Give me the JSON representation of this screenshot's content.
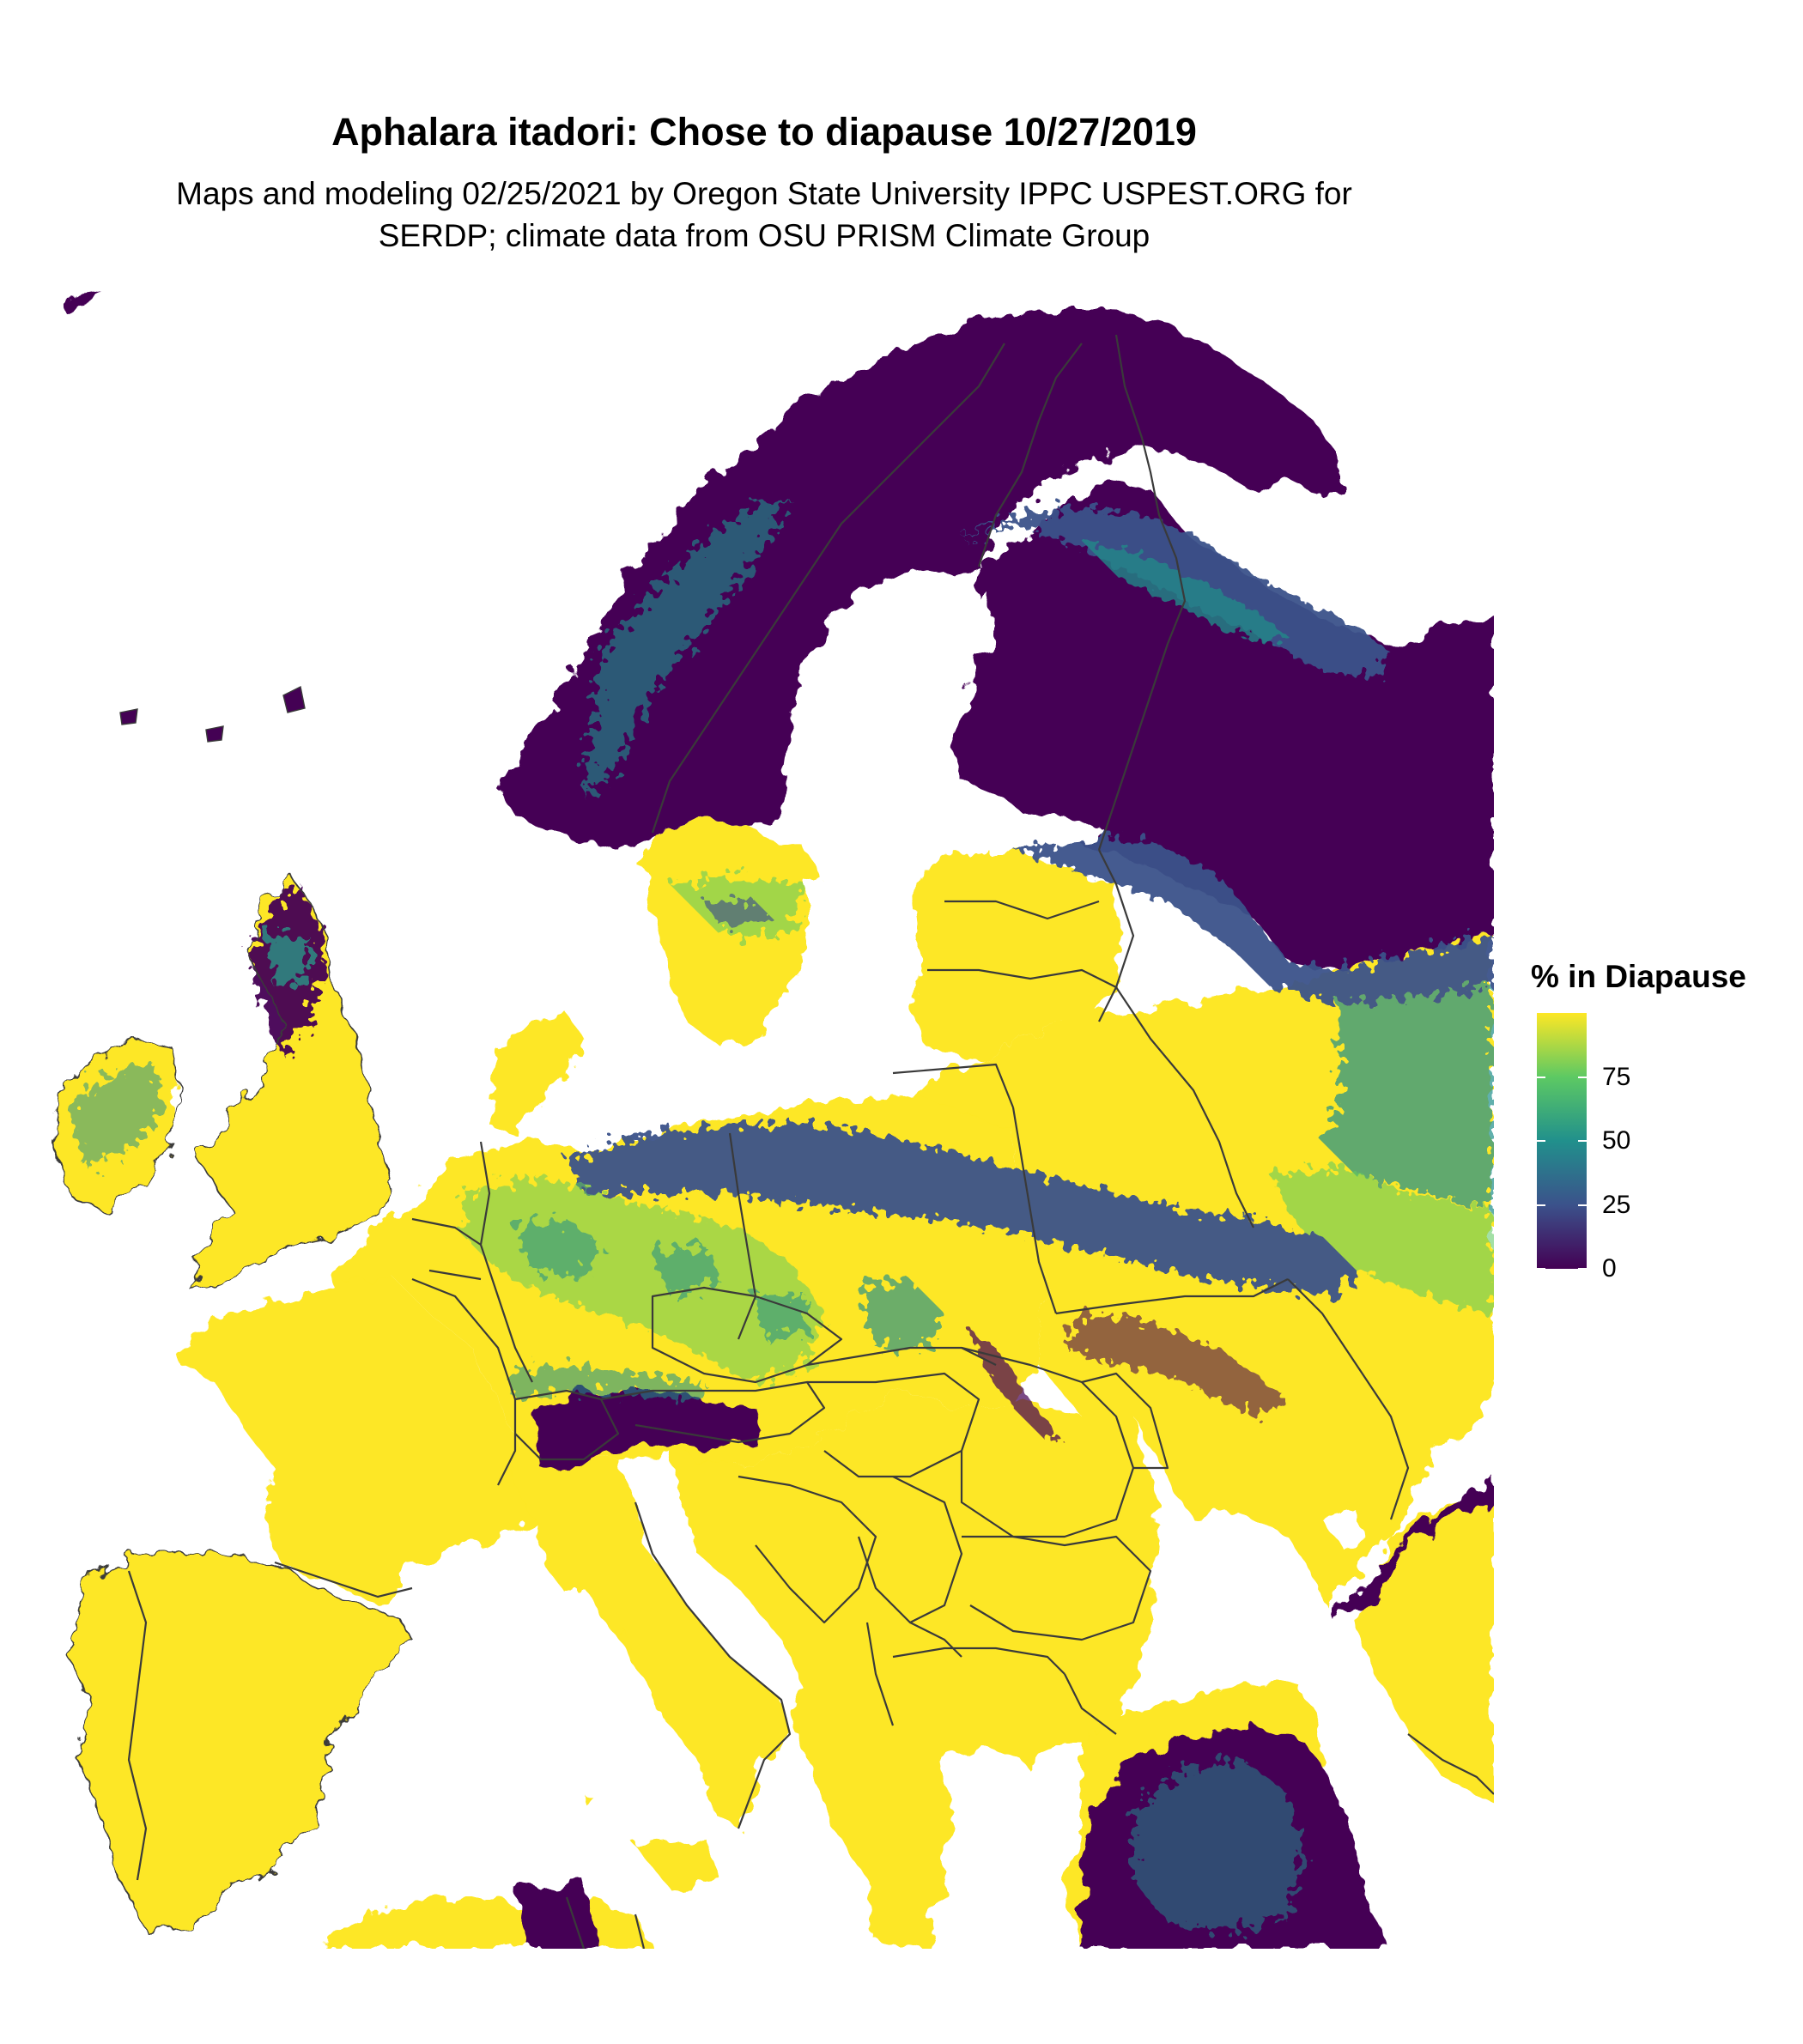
{
  "title": "Aphalara itadori: Chose to diapause 10/27/2019",
  "subtitle_line1": "Maps and modeling 02/25/2021 by Oregon State University IPPC USPEST.ORG for",
  "subtitle_line2": "SERDP; climate data from OSU PRISM Climate Group",
  "legend": {
    "title": "% in Diapause",
    "ticks": [
      "75",
      "50",
      "25",
      "0"
    ],
    "tick_values": [
      75,
      50,
      25,
      0
    ],
    "range": [
      0,
      100
    ],
    "colormap": "viridis",
    "colors": [
      "#440154",
      "#3b528b",
      "#21908c",
      "#5dc963",
      "#fde725"
    ]
  },
  "map": {
    "region": "Europe",
    "colors": {
      "low": "#440154",
      "low_mid": "#3b528b",
      "mid": "#21908c",
      "high_mid": "#5dc963",
      "high": "#fde725",
      "water": "#ffffff",
      "border": "#3a3a3a"
    }
  }
}
